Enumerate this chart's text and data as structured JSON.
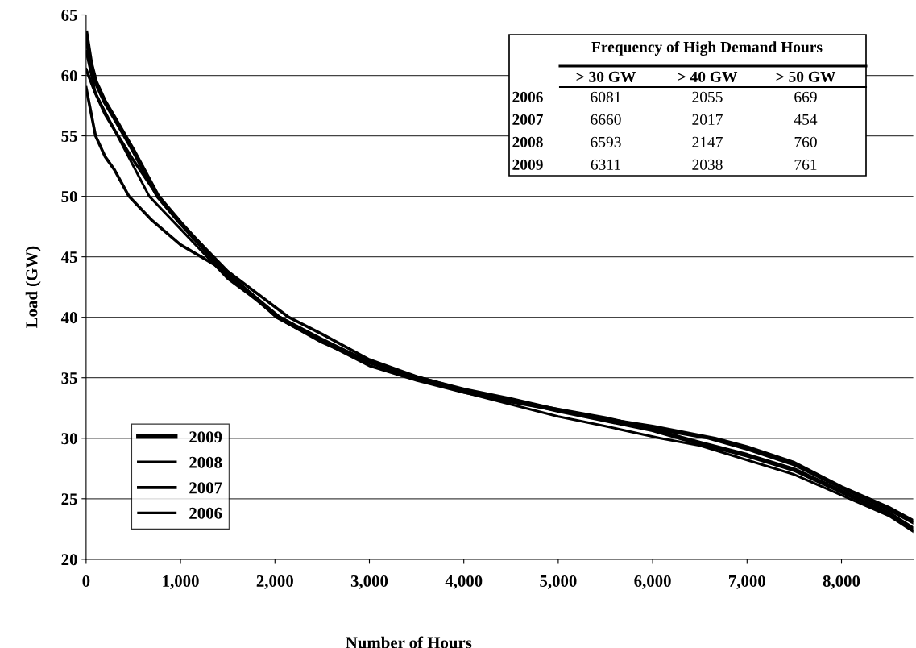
{
  "chart_data": {
    "type": "line",
    "xlabel": "Number of Hours",
    "ylabel": "Load (GW)",
    "xlim": [
      0,
      8760
    ],
    "xticks": [
      0,
      {
        "value": 1000,
        "label": "1,000"
      },
      {
        "value": 2000,
        "label": "2,000"
      },
      {
        "value": 3000,
        "label": "3,000"
      },
      {
        "value": 4000,
        "label": "4,000"
      },
      {
        "value": 5000,
        "label": "5,000"
      },
      {
        "value": 6000,
        "label": "6,000"
      },
      {
        "value": 7000,
        "label": "7,000"
      },
      {
        "value": 8000,
        "label": "8,000"
      }
    ],
    "ylim": [
      20,
      65
    ],
    "yticks": [
      20,
      25,
      30,
      35,
      40,
      45,
      50,
      55,
      60,
      65
    ],
    "grid": "y",
    "legend": "bottom left",
    "marker": "none",
    "line_style": "solid",
    "series": [
      {
        "name": "2009",
        "color": "#000000",
        "x": [
          0,
          50,
          100,
          200,
          300,
          500,
          761,
          1000,
          1500,
          2038,
          2500,
          3000,
          3500,
          4000,
          4500,
          5000,
          5500,
          6000,
          6311,
          6500,
          7000,
          7500,
          8000,
          8500,
          8760
        ],
        "values": [
          63.5,
          61,
          59.5,
          57.8,
          56.5,
          53.8,
          50,
          47.8,
          43.5,
          40,
          38,
          36.3,
          35,
          34,
          33.2,
          32.3,
          31.5,
          30.7,
          30,
          29.6,
          28.6,
          27.4,
          25.6,
          23.8,
          22.5
        ]
      },
      {
        "name": "2008",
        "color": "#000000",
        "x": [
          0,
          100,
          200,
          300,
          500,
          760,
          1000,
          1500,
          2147,
          2500,
          3000,
          3500,
          4000,
          4500,
          5000,
          5500,
          6000,
          6593,
          7000,
          7500,
          8000,
          8500,
          8760
        ],
        "values": [
          60.5,
          58.5,
          56.8,
          55.5,
          53,
          50,
          47.8,
          43.8,
          40,
          38.6,
          36.5,
          35.1,
          34,
          33.1,
          32.4,
          31.7,
          30.8,
          30,
          29.1,
          27.8,
          25.9,
          24.1,
          23
        ]
      },
      {
        "name": "2007",
        "color": "#000000",
        "x": [
          0,
          50,
          100,
          200,
          300,
          454,
          700,
          1000,
          1500,
          2017,
          2500,
          3000,
          3500,
          4000,
          4500,
          5000,
          5500,
          6000,
          6660,
          7000,
          7500,
          8000,
          8500,
          8760
        ],
        "values": [
          59,
          57,
          55,
          53.3,
          52.2,
          50,
          48,
          46,
          43.7,
          40,
          38,
          36,
          34.8,
          33.8,
          33,
          32.3,
          31.6,
          31,
          30,
          29.3,
          28,
          26,
          24.3,
          23.2
        ]
      },
      {
        "name": "2006",
        "color": "#000000",
        "x": [
          0,
          100,
          300,
          669,
          1000,
          1500,
          2055,
          2500,
          3000,
          3500,
          4000,
          4500,
          5000,
          5500,
          6081,
          6500,
          7000,
          7500,
          8000,
          8500,
          8760
        ],
        "values": [
          62,
          58.5,
          55.5,
          50,
          47.3,
          43.2,
          40,
          38.2,
          36.3,
          35,
          33.8,
          32.8,
          31.8,
          31,
          30,
          29.4,
          28.2,
          27,
          25.3,
          23.6,
          22.3
        ]
      }
    ],
    "annotations": [
      "Frequency of High Demand Hours",
      "> 30 GW",
      "> 40 GW",
      "> 50 GW",
      "2006",
      "6081",
      "2055",
      "669",
      "2007",
      "6660",
      "2017",
      "454",
      "2008",
      "6593",
      "2147",
      "760",
      "2009",
      "6311",
      "2038",
      "761"
    ]
  }
}
